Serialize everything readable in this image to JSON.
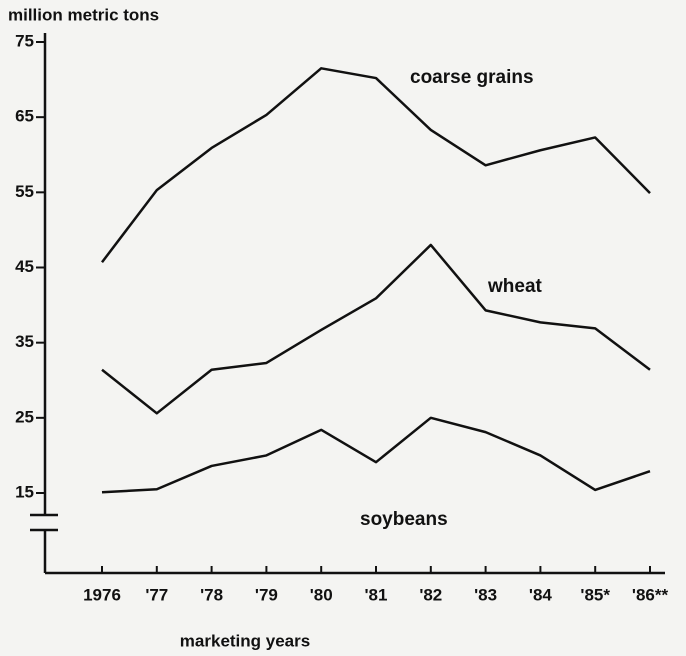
{
  "chart_data": {
    "type": "line",
    "y_axis_label": "million metric tons",
    "x_axis_label": "marketing years",
    "categories": [
      "1976",
      "'77",
      "'78",
      "'79",
      "'80",
      "'81",
      "'82",
      "'83",
      "'84",
      "'85*",
      "'86**"
    ],
    "series": [
      {
        "name": "coarse grains",
        "color": "#111111",
        "values": [
          45.7,
          55.3,
          60.9,
          65.3,
          71.5,
          70.2,
          63.3,
          58.6,
          60.6,
          62.3,
          54.9
        ]
      },
      {
        "name": "wheat",
        "color": "#111111",
        "values": [
          31.4,
          25.6,
          31.4,
          32.3,
          36.7,
          40.9,
          48,
          39.3,
          37.7,
          36.9,
          31.4
        ]
      },
      {
        "name": "soybeans",
        "color": "#111111",
        "values": [
          15.1,
          15.5,
          18.6,
          20,
          23.4,
          19.1,
          25,
          23.1,
          20,
          15.4,
          17.9
        ]
      }
    ],
    "ylim": [
      15,
      75
    ],
    "yticks": [
      15,
      25,
      35,
      45,
      55,
      65,
      75
    ],
    "grid": false
  }
}
